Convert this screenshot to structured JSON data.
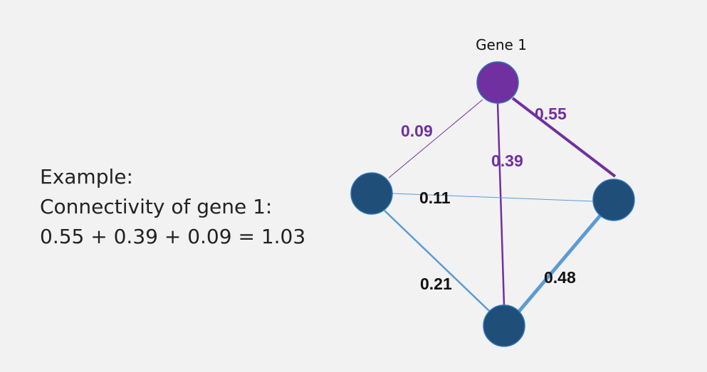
{
  "example": {
    "heading": "Example:",
    "line1": "Connectivity of gene 1:",
    "line2": "0.55 + 0.39 + 0.09 = 1.03"
  },
  "network": {
    "colors": {
      "highlight": "#7030a0",
      "node": "#1f4e79",
      "node_stroke": "#2e75b6",
      "edge": "#5b9bd5",
      "label_dark": "#111111"
    },
    "nodes": [
      {
        "id": "gene1",
        "label": "Gene 1",
        "highlighted": true
      },
      {
        "id": "left",
        "label": "",
        "highlighted": false
      },
      {
        "id": "right",
        "label": "",
        "highlighted": false
      },
      {
        "id": "bottom",
        "label": "",
        "highlighted": false
      }
    ],
    "edges": [
      {
        "source": "gene1",
        "target": "left",
        "weight": "0.09",
        "highlighted": true
      },
      {
        "source": "gene1",
        "target": "right",
        "weight": "0.55",
        "highlighted": true
      },
      {
        "source": "gene1",
        "target": "bottom",
        "weight": "0.39",
        "highlighted": true
      },
      {
        "source": "left",
        "target": "right",
        "weight": "0.11",
        "highlighted": false
      },
      {
        "source": "left",
        "target": "bottom",
        "weight": "0.21",
        "highlighted": false
      },
      {
        "source": "right",
        "target": "bottom",
        "weight": "0.48",
        "highlighted": false
      }
    ]
  }
}
